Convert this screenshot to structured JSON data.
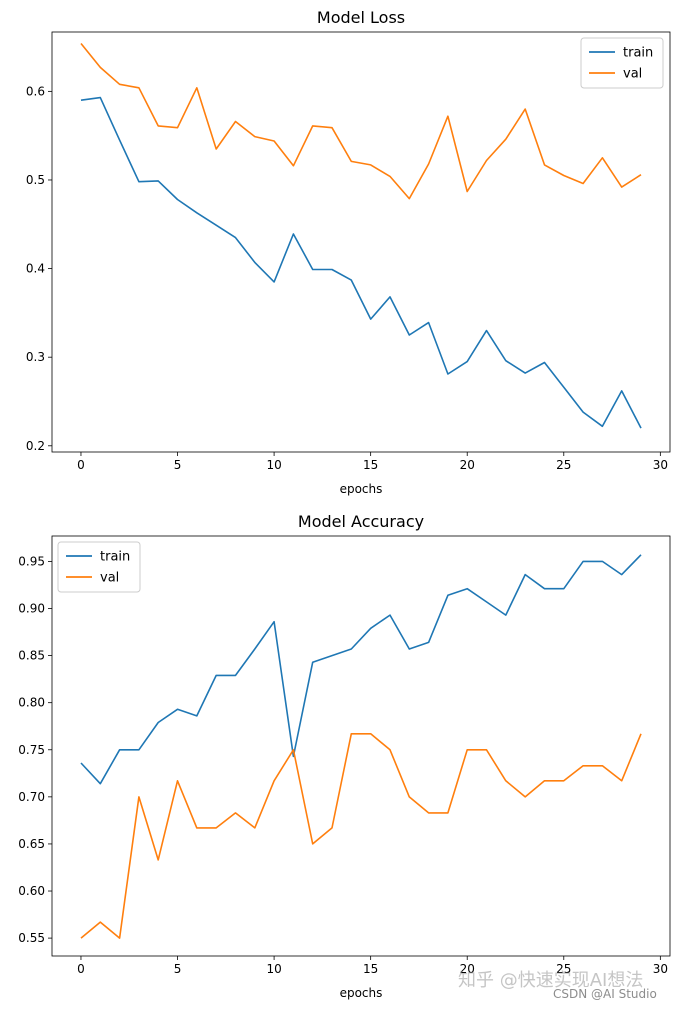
{
  "chart_data": [
    {
      "type": "line",
      "title": "Model Loss",
      "xlabel": "epochs",
      "ylabel": "",
      "xlim": [
        -1.5,
        30.5
      ],
      "ylim": [
        0.193,
        0.667
      ],
      "xticks": [
        0,
        5,
        10,
        15,
        20,
        25,
        30
      ],
      "yticks": [
        0.2,
        0.3,
        0.4,
        0.5,
        0.6
      ],
      "ytick_labels": [
        "0.2",
        "0.3",
        "0.4",
        "0.5",
        "0.6"
      ],
      "legend_loc": "top-right",
      "x": [
        0,
        1,
        2,
        3,
        4,
        5,
        6,
        7,
        8,
        9,
        10,
        11,
        12,
        13,
        14,
        15,
        16,
        17,
        18,
        19,
        20,
        21,
        22,
        23,
        24,
        25,
        26,
        27,
        28,
        29
      ],
      "series": [
        {
          "name": "train",
          "color": "#1f77b4",
          "values": [
            0.59,
            0.593,
            0.545,
            0.498,
            0.499,
            0.478,
            0.463,
            0.449,
            0.435,
            0.407,
            0.385,
            0.439,
            0.399,
            0.399,
            0.387,
            0.343,
            0.368,
            0.325,
            0.339,
            0.281,
            0.295,
            0.33,
            0.296,
            0.282,
            0.294,
            0.266,
            0.238,
            0.222,
            0.262,
            0.22
          ]
        },
        {
          "name": "val",
          "color": "#ff7f0e",
          "values": [
            0.654,
            0.627,
            0.608,
            0.604,
            0.561,
            0.559,
            0.604,
            0.535,
            0.566,
            0.549,
            0.544,
            0.516,
            0.561,
            0.559,
            0.521,
            0.517,
            0.504,
            0.479,
            0.518,
            0.572,
            0.487,
            0.522,
            0.546,
            0.58,
            0.517,
            0.505,
            0.496,
            0.525,
            0.492,
            0.506
          ]
        }
      ]
    },
    {
      "type": "line",
      "title": "Model Accuracy",
      "xlabel": "epochs",
      "ylabel": "",
      "xlim": [
        -1.5,
        30.5
      ],
      "ylim": [
        0.531,
        0.977
      ],
      "xticks": [
        0,
        5,
        10,
        15,
        20,
        25,
        30
      ],
      "yticks": [
        0.55,
        0.6,
        0.65,
        0.7,
        0.75,
        0.8,
        0.85,
        0.9,
        0.95
      ],
      "ytick_labels": [
        "0.55",
        "0.60",
        "0.65",
        "0.70",
        "0.75",
        "0.80",
        "0.85",
        "0.90",
        "0.95"
      ],
      "legend_loc": "top-left",
      "x": [
        0,
        1,
        2,
        3,
        4,
        5,
        6,
        7,
        8,
        9,
        10,
        11,
        12,
        13,
        14,
        15,
        16,
        17,
        18,
        19,
        20,
        21,
        22,
        23,
        24,
        25,
        26,
        27,
        28,
        29
      ],
      "series": [
        {
          "name": "train",
          "color": "#1f77b4",
          "values": [
            0.736,
            0.714,
            0.75,
            0.75,
            0.779,
            0.793,
            0.786,
            0.829,
            0.829,
            0.857,
            0.886,
            0.743,
            0.843,
            0.85,
            0.857,
            0.879,
            0.893,
            0.857,
            0.864,
            0.914,
            0.921,
            0.907,
            0.893,
            0.936,
            0.921,
            0.921,
            0.95,
            0.95,
            0.936,
            0.957
          ]
        },
        {
          "name": "val",
          "color": "#ff7f0e",
          "values": [
            0.55,
            0.567,
            0.55,
            0.7,
            0.633,
            0.717,
            0.667,
            0.667,
            0.683,
            0.667,
            0.717,
            0.75,
            0.65,
            0.667,
            0.767,
            0.767,
            0.75,
            0.7,
            0.683,
            0.683,
            0.75,
            0.75,
            0.717,
            0.7,
            0.717,
            0.717,
            0.733,
            0.733,
            0.717,
            0.767
          ]
        }
      ]
    }
  ],
  "watermark": {
    "line1": "知乎 @快速实现AI想法",
    "line2": "CSDN @AI Studio"
  }
}
